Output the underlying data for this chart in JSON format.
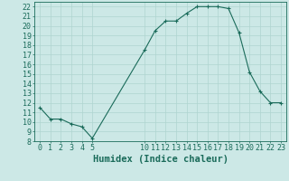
{
  "x": [
    0,
    1,
    2,
    3,
    4,
    5,
    10,
    11,
    12,
    13,
    14,
    15,
    16,
    17,
    18,
    19,
    20,
    21,
    22,
    23
  ],
  "y": [
    11.5,
    10.3,
    10.3,
    9.8,
    9.5,
    8.3,
    17.5,
    19.5,
    20.5,
    20.5,
    21.3,
    22.0,
    22.0,
    22.0,
    21.8,
    19.3,
    15.2,
    13.2,
    12.0,
    12.0
  ],
  "line_color": "#1a6b5a",
  "bg_color": "#cce8e6",
  "grid_color": "#afd4d0",
  "tick_color": "#1a6b5a",
  "xlabel": "Humidex (Indice chaleur)",
  "ylim": [
    8,
    22.5
  ],
  "xlim": [
    -0.5,
    23.5
  ],
  "yticks": [
    8,
    9,
    10,
    11,
    12,
    13,
    14,
    15,
    16,
    17,
    18,
    19,
    20,
    21,
    22
  ],
  "xticks": [
    0,
    1,
    2,
    3,
    4,
    5,
    10,
    11,
    12,
    13,
    14,
    15,
    16,
    17,
    18,
    19,
    20,
    21,
    22,
    23
  ],
  "font_size": 6.0,
  "label_font_size": 7.5,
  "marker": "+"
}
